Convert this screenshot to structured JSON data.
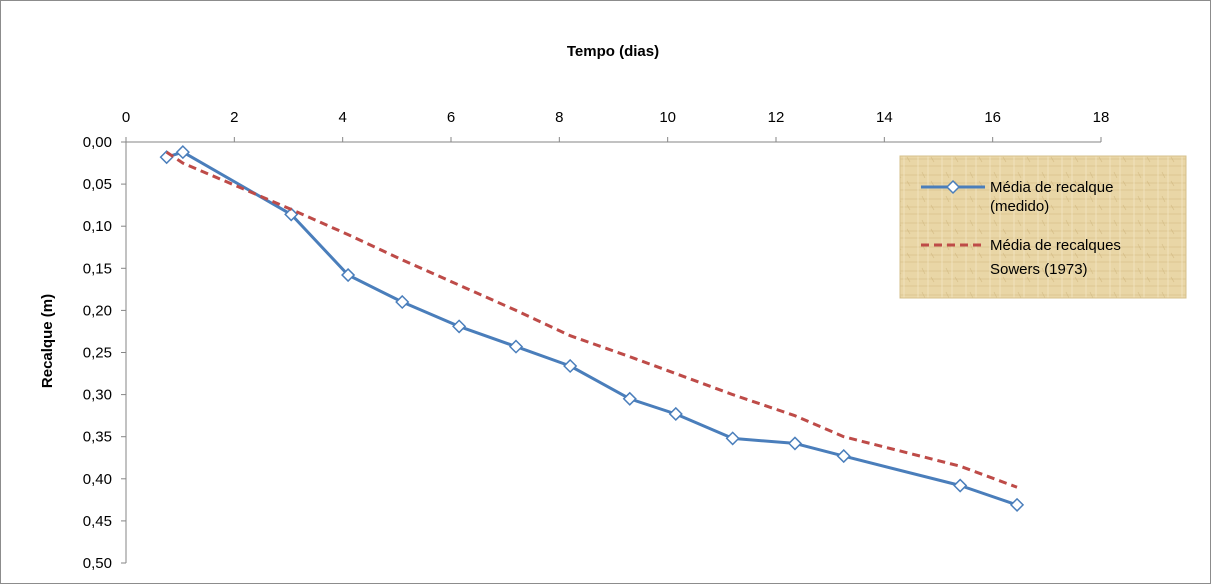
{
  "chart_data": {
    "type": "line",
    "xlabel": "Tempo (dias)",
    "ylabel": "Recalque (m)",
    "xlim": [
      0,
      18
    ],
    "ylim": [
      0,
      0.5
    ],
    "y_reversed": true,
    "x_axis_position": "top",
    "x_ticks": [
      "0",
      "2",
      "4",
      "6",
      "8",
      "10",
      "12",
      "14",
      "16",
      "18"
    ],
    "y_ticks": [
      "0,00",
      "0,05",
      "0,10",
      "0,15",
      "0,20",
      "0,25",
      "0,30",
      "0,35",
      "0,40",
      "0,45",
      "0,50"
    ],
    "grid": false,
    "legend_position": "right",
    "series": [
      {
        "name_lines": [
          "Média de  recalque",
          "(medido)"
        ],
        "color": "#4a7ebb",
        "style": "solid",
        "marker": "diamond",
        "x": [
          0.75,
          1.05,
          3.05,
          4.1,
          5.1,
          6.15,
          7.2,
          8.2,
          9.3,
          10.15,
          11.2,
          12.35,
          13.25,
          15.4,
          16.45
        ],
        "y": [
          0.018,
          0.012,
          0.086,
          0.158,
          0.19,
          0.219,
          0.243,
          0.266,
          0.305,
          0.323,
          0.352,
          0.358,
          0.373,
          0.408,
          0.431
        ]
      },
      {
        "name_lines": [
          "Média de recalques",
          "Sowers (1973)"
        ],
        "color": "#be4b48",
        "style": "dashed",
        "marker": "none",
        "x": [
          0.75,
          1.05,
          3.05,
          4.1,
          5.1,
          6.15,
          7.2,
          8.2,
          9.3,
          10.15,
          11.2,
          12.35,
          13.25,
          15.4,
          16.45
        ],
        "y": [
          0.012,
          0.025,
          0.08,
          0.11,
          0.14,
          0.17,
          0.2,
          0.23,
          0.255,
          0.275,
          0.3,
          0.325,
          0.35,
          0.385,
          0.41
        ]
      }
    ]
  },
  "colors": {
    "legend_background": "#e9d6a6",
    "axis": "#868686"
  }
}
